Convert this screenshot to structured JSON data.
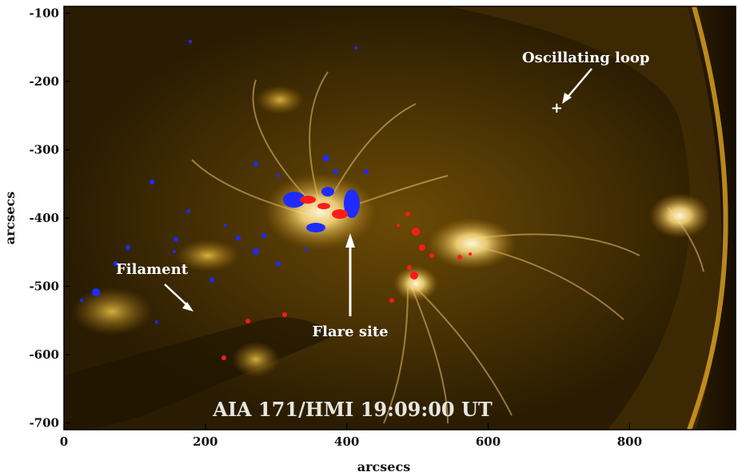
{
  "figure": {
    "caption": "AIA 171/HMI 19:09:00 UT",
    "annotations": {
      "oscillating_loop": "Oscillating loop",
      "filament": "Filament",
      "flare_site": "Flare site",
      "marker": "+"
    },
    "axes": {
      "xlabel": "arcsecs",
      "ylabel": "arcsecs",
      "xlim": [
        0,
        950
      ],
      "ylim": [
        -710,
        -90
      ],
      "xticks": [
        0,
        200,
        400,
        600,
        800
      ],
      "yticks": [
        -100,
        -200,
        -300,
        -400,
        -500,
        -600,
        -700
      ],
      "xtick_labels": [
        "0",
        "200",
        "400",
        "600",
        "800"
      ],
      "ytick_labels": [
        "-100",
        "-200",
        "-300",
        "-400",
        "-500",
        "-600",
        "-700"
      ]
    },
    "points": {
      "oscillating_loop_marker": [
        697,
        -240
      ],
      "filament_arrow_tip": [
        190,
        -535
      ],
      "flare_arrow_tip": [
        400,
        -420
      ]
    },
    "colors": {
      "solar_dark": "#1a1000",
      "solar_mid": "#6b4a05",
      "solar_bright": "#f2c94a",
      "flare_white": "#fff6d8",
      "magnetic_negative": "#1f2bff",
      "magnetic_positive": "#ff1a1a"
    }
  }
}
